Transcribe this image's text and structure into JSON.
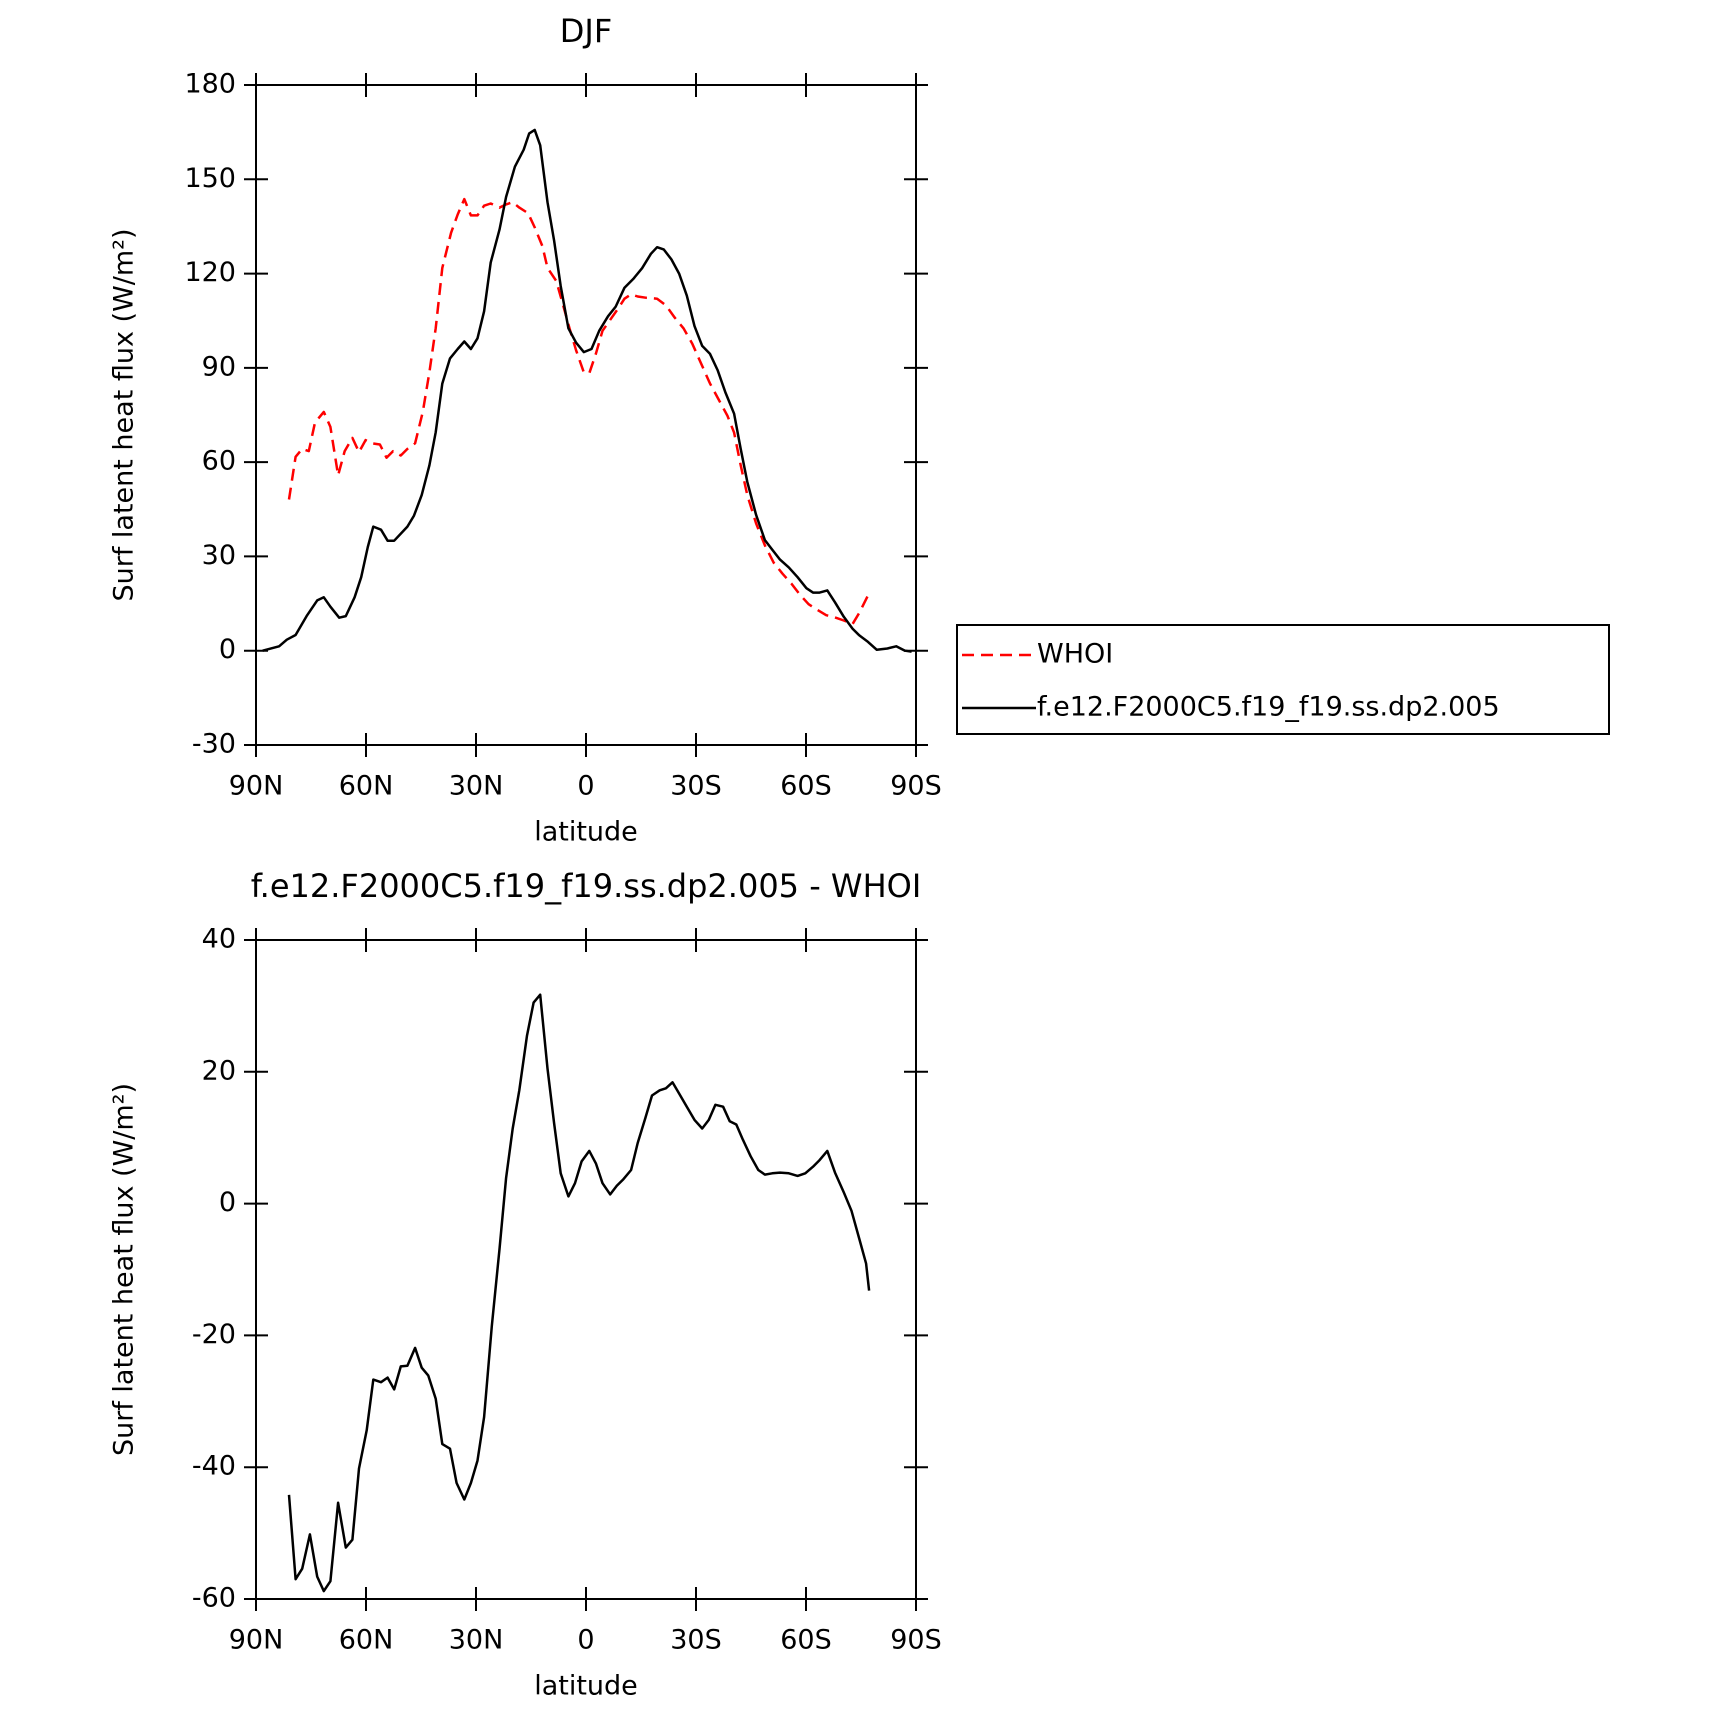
{
  "chart_data": [
    {
      "type": "line",
      "title": "DJF",
      "xlabel": "latitude",
      "ylabel": "Surf latent heat flux (W/m²)",
      "xlim": [
        90,
        -90
      ],
      "xticks": [
        {
          "value": 90,
          "label": "90N"
        },
        {
          "value": 60,
          "label": "60N"
        },
        {
          "value": 30,
          "label": "30N"
        },
        0,
        {
          "value": -30,
          "label": "30S"
        },
        {
          "value": -60,
          "label": "60S"
        },
        {
          "value": -90,
          "label": "90S"
        }
      ],
      "ylim": [
        -30,
        180
      ],
      "yticks": [
        -30,
        0,
        30,
        60,
        90,
        120,
        150,
        180
      ],
      "legend": "outside right",
      "series": [
        {
          "name": "WHOI",
          "color": "#ff0000",
          "dashed": true,
          "x": [
            81,
            79.2,
            77.4,
            75.6,
            73.9,
            71.5,
            69.7,
            67.6,
            65.8,
            63.7,
            61.9,
            60.1,
            58.3,
            56.2,
            54.4,
            52.6,
            50.5,
            48.7,
            46.6,
            44.5,
            42.7,
            41,
            39.2,
            36.8,
            35,
            33.2,
            31.4,
            29.6,
            27.8,
            26,
            23.6,
            21.8,
            20,
            18.2,
            15.8,
            14,
            11.9,
            10.5,
            8.1,
            6.3,
            4.5,
            2.7,
            0.6,
            -0.9,
            -2.7,
            -4.5,
            -6.6,
            -8.7,
            -10.5,
            -12.3,
            -14.1,
            -16.5,
            -19.4,
            -21.8,
            -24.2,
            -26.6,
            -29,
            -31.4,
            -33.8,
            -36.2,
            -38.6,
            -40.4,
            -42.2,
            -44,
            -46.4,
            -48.8,
            -51.2,
            -53.6,
            -56,
            -58.3,
            -60.7,
            -63.1,
            -65.5,
            -67.9,
            -70.3,
            -72.7,
            -74.5,
            -76.9
          ],
          "values": [
            48.1,
            61.7,
            64.2,
            63.5,
            72.6,
            76,
            71.2,
            55.8,
            63.5,
            67.7,
            63.2,
            67,
            66,
            65.6,
            61.4,
            63.5,
            62.1,
            64.2,
            66,
            76,
            88.6,
            102.6,
            121.8,
            133,
            138.8,
            143.7,
            138.5,
            138.5,
            141.6,
            142.3,
            141,
            142,
            142.7,
            141,
            139.2,
            134.7,
            128.7,
            121.8,
            117.6,
            110.2,
            102.6,
            95.6,
            88.6,
            88.3,
            94.5,
            101.8,
            105.3,
            108.8,
            112,
            113.4,
            112.7,
            112.3,
            112,
            109.9,
            106,
            102.6,
            97.7,
            91.4,
            85.1,
            79.9,
            74.7,
            69.4,
            59,
            49.5,
            40.5,
            33.5,
            28,
            24.5,
            21.4,
            17.9,
            14.8,
            13,
            11.3,
            10.6,
            9.6,
            8.5,
            12,
            17.6
          ]
        },
        {
          "name": "f.e12.F2000C5.f19_f19.ss.dp2.005",
          "color": "#000000",
          "dashed": false,
          "x": [
            88.2,
            83.7,
            81.6,
            79.2,
            76.2,
            73.3,
            71.5,
            69.7,
            67.3,
            65.5,
            63.1,
            61.3,
            59.5,
            58,
            55.9,
            54.1,
            52.3,
            48.7,
            46.9,
            44.8,
            42.7,
            41,
            39.2,
            37.1,
            35,
            33.2,
            31.4,
            29.6,
            27.8,
            26,
            23.6,
            21.8,
            19.4,
            17,
            15.5,
            14,
            12.5,
            10.5,
            8.7,
            6.9,
            4.8,
            2.7,
            0.6,
            -1.5,
            -3.6,
            -6,
            -8.1,
            -10.5,
            -12.9,
            -15.3,
            -17.7,
            -19.4,
            -21.2,
            -23.3,
            -25.4,
            -27.5,
            -29.6,
            -31.7,
            -33.8,
            -35.9,
            -38,
            -40.4,
            -42.2,
            -44,
            -46.4,
            -48.8,
            -50.8,
            -52.9,
            -55.3,
            -57.7,
            -60.1,
            -61.9,
            -63.7,
            -65.8,
            -67.9,
            -70.3,
            -72.7,
            -74.5,
            -76.9,
            -79.3,
            -82.2,
            -84.6,
            -87,
            -88.8
          ],
          "values": [
            0,
            1.4,
            3.5,
            5,
            11,
            16,
            17,
            14,
            10.5,
            11,
            17,
            23.4,
            33,
            39.5,
            38.5,
            35,
            35,
            39.5,
            43,
            49.5,
            59,
            69.5,
            85,
            93,
            96,
            98.4,
            96,
            99.4,
            108,
            123.5,
            134,
            144.4,
            154,
            159.4,
            164.6,
            165.7,
            160.8,
            142.7,
            130.5,
            116,
            102.6,
            98,
            95,
            96,
            101.8,
            106.4,
            109.5,
            115.5,
            118.3,
            121.7,
            126.3,
            128.4,
            127.7,
            124.5,
            120,
            113,
            103.3,
            97,
            94.5,
            89.3,
            82.3,
            75.4,
            64.2,
            53.7,
            43.2,
            35.2,
            32.1,
            29,
            26.5,
            23.4,
            19.9,
            18.5,
            18.5,
            19.2,
            15.4,
            10.8,
            7,
            4.9,
            2.8,
            0.3,
            0.7,
            1.4,
            0,
            -0.3
          ]
        }
      ]
    },
    {
      "type": "line",
      "title": "f.e12.F2000C5.f19_f19.ss.dp2.005 - WHOI",
      "xlabel": "latitude",
      "ylabel": "Surf latent heat flux (W/m²)",
      "xlim": [
        90,
        -90
      ],
      "xticks": [
        {
          "value": 90,
          "label": "90N"
        },
        {
          "value": 60,
          "label": "60N"
        },
        {
          "value": 30,
          "label": "30N"
        },
        0,
        {
          "value": -30,
          "label": "30S"
        },
        {
          "value": -60,
          "label": "60S"
        },
        {
          "value": -90,
          "label": "90S"
        }
      ],
      "ylim": [
        -60,
        40
      ],
      "yticks": [
        -60,
        -40,
        -20,
        0,
        20,
        40
      ],
      "series": [
        {
          "color": "#000000",
          "dashed": false,
          "x": [
            81,
            79.2,
            77.4,
            75.3,
            73.3,
            71.5,
            69.7,
            67.6,
            65.5,
            63.7,
            61.9,
            59.8,
            58,
            55.9,
            54.1,
            52.3,
            50.5,
            48.7,
            46.6,
            44.8,
            43,
            41,
            39.2,
            37.1,
            35.3,
            33.2,
            31.4,
            29.6,
            27.8,
            25.7,
            23.6,
            21.8,
            20,
            18.2,
            16.1,
            14.3,
            12.5,
            10.5,
            8.7,
            6.9,
            4.8,
            3,
            1.2,
            -0.9,
            -2.7,
            -4.5,
            -6.6,
            -8.4,
            -10.2,
            -12.3,
            -14.1,
            -16.2,
            -18,
            -20.1,
            -21.8,
            -23.6,
            -25.4,
            -27.5,
            -29.6,
            -31.7,
            -33.5,
            -35.3,
            -37.4,
            -39.2,
            -41,
            -42.8,
            -44.9,
            -47,
            -48.8,
            -50.8,
            -52.9,
            -55.3,
            -57.7,
            -59.8,
            -61.9,
            -63.7,
            -65.8,
            -67.9,
            -70.3,
            -72.4,
            -74.5,
            -76.4,
            -77.2
          ],
          "values": [
            -44.2,
            -57,
            -55.4,
            -50.2,
            -56.6,
            -58.8,
            -57.3,
            -45.4,
            -52.2,
            -51,
            -40.2,
            -34.4,
            -26.7,
            -27.1,
            -26.4,
            -28.2,
            -24.7,
            -24.6,
            -21.9,
            -24.9,
            -26.1,
            -29.6,
            -36.5,
            -37.2,
            -42.4,
            -44.9,
            -42.4,
            -39,
            -32.4,
            -18.6,
            -6.9,
            3.9,
            11.4,
            17.2,
            25.5,
            30.5,
            31.7,
            20.5,
            12.2,
            4.6,
            1.1,
            3.1,
            6.4,
            8,
            6.1,
            3.1,
            1.4,
            2.7,
            3.7,
            5.1,
            9.2,
            13,
            16.4,
            17.2,
            17.5,
            18.4,
            16.7,
            14.7,
            12.7,
            11.4,
            12.7,
            15,
            14.7,
            12.5,
            12,
            9.7,
            7.2,
            5.1,
            4.4,
            4.6,
            4.7,
            4.6,
            4.2,
            4.6,
            5.6,
            6.6,
            8,
            4.7,
            1.7,
            -1.1,
            -5.3,
            -9.1,
            -13.2
          ]
        }
      ]
    }
  ]
}
